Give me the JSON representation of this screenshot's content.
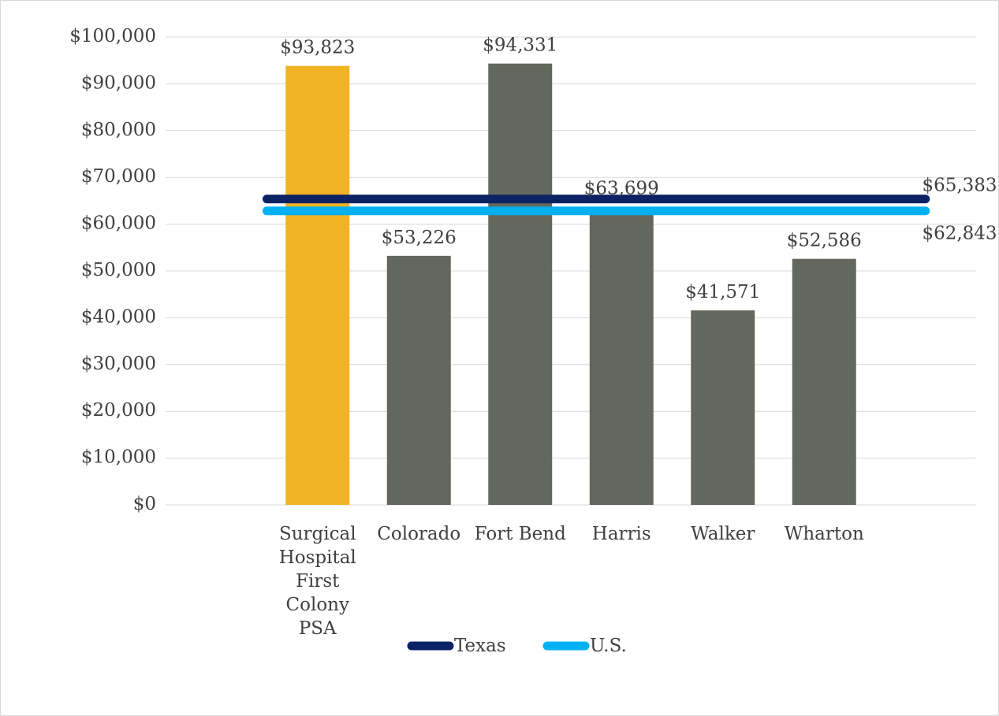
{
  "chart_data": {
    "type": "bar",
    "categories": [
      null,
      "Surgical Hospital First Colony PSA",
      "Colorado",
      "Fort Bend",
      "Harris",
      "Walker",
      "Wharton",
      null
    ],
    "values": [
      null,
      93823,
      53226,
      94331,
      63699,
      41571,
      52586,
      null
    ],
    "value_labels": [
      null,
      "$93,823",
      "$53,226",
      "$94,331",
      "$63,699",
      "$41,571",
      "$52,586",
      null
    ],
    "colors": [
      null,
      "#f0b323",
      "#64675d",
      "#64675d",
      "#64675d",
      "#64675d",
      "#64675d",
      null
    ],
    "reference_lines": [
      {
        "name": "Texas",
        "color": "#0b2265",
        "value": 65383,
        "value_label": "$65,383"
      },
      {
        "name": "U.S.",
        "color": "#00b0f0",
        "value": 62843,
        "value_label": "$62,843"
      }
    ],
    "ylim": [
      0,
      100000
    ],
    "yticks": [
      {
        "value": 0,
        "label": "$0"
      },
      {
        "value": 10000,
        "label": "$10,000"
      },
      {
        "value": 20000,
        "label": "$20,000"
      },
      {
        "value": 30000,
        "label": "$30,000"
      },
      {
        "value": 40000,
        "label": "$40,000"
      },
      {
        "value": 50000,
        "label": "$50,000"
      },
      {
        "value": 60000,
        "label": "$60,000"
      },
      {
        "value": 70000,
        "label": "$70,000"
      },
      {
        "value": 80000,
        "label": "$80,000"
      },
      {
        "value": 90000,
        "label": "$90,000"
      },
      {
        "value": 100000,
        "label": "$100,000"
      }
    ],
    "grid": true,
    "legend": "bottom"
  }
}
